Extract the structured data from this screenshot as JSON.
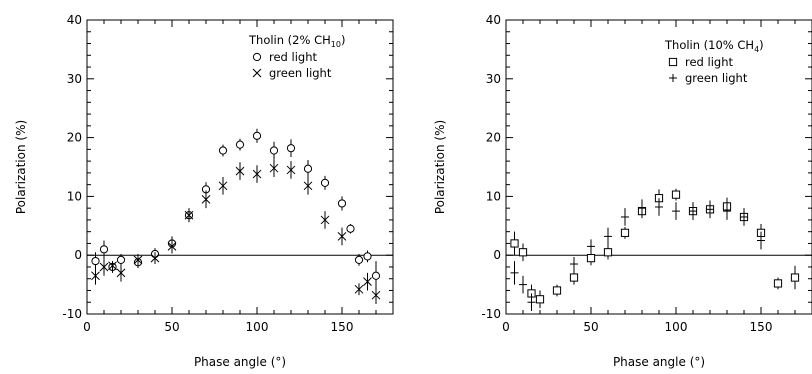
{
  "chart_data": [
    {
      "type": "scatter",
      "title": "",
      "xlabel": "Phase angle (°)",
      "ylabel": "Polarization (%)",
      "xlim": [
        0,
        180
      ],
      "ylim": [
        -10,
        40
      ],
      "xticks": [
        "0",
        "50",
        "100",
        "150"
      ],
      "yticks": [
        "-10",
        "0",
        "10",
        "20",
        "30",
        "40"
      ],
      "grid": false,
      "zero_line": true,
      "legend": {
        "position": "top-right",
        "title_main": "Tholin (2% CH",
        "title_sub": "10",
        "title_end": ")",
        "entries": [
          "red light",
          "green light"
        ]
      },
      "series": [
        {
          "name": "red light",
          "marker": "circle",
          "points": [
            {
              "x": 5,
              "y": -1.0,
              "err": 1.5
            },
            {
              "x": 10,
              "y": 1.0,
              "err": 1.5
            },
            {
              "x": 15,
              "y": -2.0,
              "err": 1.0
            },
            {
              "x": 20,
              "y": -0.8,
              "err": 1.0
            },
            {
              "x": 30,
              "y": -1.2,
              "err": 1.0
            },
            {
              "x": 40,
              "y": 0.2,
              "err": 1.0
            },
            {
              "x": 50,
              "y": 2.0,
              "err": 1.2
            },
            {
              "x": 60,
              "y": 6.8,
              "err": 1.2
            },
            {
              "x": 70,
              "y": 11.2,
              "err": 1.2
            },
            {
              "x": 80,
              "y": 17.8,
              "err": 1.0
            },
            {
              "x": 90,
              "y": 18.8,
              "err": 1.0
            },
            {
              "x": 100,
              "y": 20.3,
              "err": 1.2
            },
            {
              "x": 110,
              "y": 17.8,
              "err": 1.5
            },
            {
              "x": 120,
              "y": 18.2,
              "err": 1.5
            },
            {
              "x": 130,
              "y": 14.7,
              "err": 1.5
            },
            {
              "x": 140,
              "y": 12.3,
              "err": 1.2
            },
            {
              "x": 150,
              "y": 8.8,
              "err": 1.2
            },
            {
              "x": 155,
              "y": 4.5,
              "err": 0.8
            },
            {
              "x": 160,
              "y": -0.8,
              "err": 1.0
            },
            {
              "x": 165,
              "y": -0.2,
              "err": 1.0
            },
            {
              "x": 170,
              "y": -3.5,
              "err": 2.5
            }
          ]
        },
        {
          "name": "green light",
          "marker": "x",
          "points": [
            {
              "x": 5,
              "y": -3.5,
              "err": 1.5
            },
            {
              "x": 10,
              "y": -2.0,
              "err": 1.5
            },
            {
              "x": 15,
              "y": -1.8,
              "err": 0.8
            },
            {
              "x": 20,
              "y": -3.0,
              "err": 1.5
            },
            {
              "x": 30,
              "y": -0.8,
              "err": 1.0
            },
            {
              "x": 40,
              "y": -0.5,
              "err": 1.0
            },
            {
              "x": 50,
              "y": 1.5,
              "err": 1.2
            },
            {
              "x": 60,
              "y": 6.8,
              "err": 1.0
            },
            {
              "x": 70,
              "y": 9.5,
              "err": 1.5
            },
            {
              "x": 80,
              "y": 11.8,
              "err": 1.5
            },
            {
              "x": 90,
              "y": 14.3,
              "err": 1.5
            },
            {
              "x": 100,
              "y": 13.8,
              "err": 1.5
            },
            {
              "x": 110,
              "y": 14.8,
              "err": 1.5
            },
            {
              "x": 120,
              "y": 14.5,
              "err": 1.5
            },
            {
              "x": 130,
              "y": 11.8,
              "err": 1.5
            },
            {
              "x": 140,
              "y": 6.0,
              "err": 1.5
            },
            {
              "x": 150,
              "y": 3.2,
              "err": 1.5
            },
            {
              "x": 160,
              "y": -5.8,
              "err": 1.0
            },
            {
              "x": 165,
              "y": -4.5,
              "err": 1.5
            },
            {
              "x": 170,
              "y": -6.8,
              "err": 1.5
            }
          ]
        }
      ]
    },
    {
      "type": "scatter",
      "title": "",
      "xlabel": "Phase angle (°)",
      "ylabel": "Polarization (%)",
      "xlim": [
        0,
        180
      ],
      "ylim": [
        -10,
        40
      ],
      "xticks": [
        "0",
        "50",
        "100",
        "150"
      ],
      "yticks": [
        "-10",
        "0",
        "10",
        "20",
        "30",
        "40"
      ],
      "grid": false,
      "zero_line": true,
      "legend": {
        "position": "top-right",
        "title_main": "Tholin (10% CH",
        "title_sub": "4",
        "title_end": ")",
        "entries": [
          "red light",
          "green light"
        ]
      },
      "series": [
        {
          "name": "red light",
          "marker": "square",
          "points": [
            {
              "x": 5,
              "y": 2.0,
              "err": 2.0
            },
            {
              "x": 10,
              "y": 0.5,
              "err": 1.5
            },
            {
              "x": 15,
              "y": -6.5,
              "err": 1.5
            },
            {
              "x": 20,
              "y": -7.5,
              "err": 1.5
            },
            {
              "x": 30,
              "y": -6.0,
              "err": 1.0
            },
            {
              "x": 40,
              "y": -3.8,
              "err": 1.2
            },
            {
              "x": 50,
              "y": -0.5,
              "err": 1.2
            },
            {
              "x": 60,
              "y": 0.5,
              "err": 1.2
            },
            {
              "x": 70,
              "y": 3.8,
              "err": 1.0
            },
            {
              "x": 80,
              "y": 7.5,
              "err": 1.2
            },
            {
              "x": 90,
              "y": 9.7,
              "err": 1.5
            },
            {
              "x": 100,
              "y": 10.3,
              "err": 1.0
            },
            {
              "x": 110,
              "y": 7.5,
              "err": 1.5
            },
            {
              "x": 120,
              "y": 7.8,
              "err": 1.2
            },
            {
              "x": 130,
              "y": 8.3,
              "err": 1.5
            },
            {
              "x": 140,
              "y": 6.5,
              "err": 1.2
            },
            {
              "x": 150,
              "y": 3.8,
              "err": 1.5
            },
            {
              "x": 160,
              "y": -4.8,
              "err": 1.0
            },
            {
              "x": 170,
              "y": -3.8,
              "err": 2.0
            }
          ]
        },
        {
          "name": "green light",
          "marker": "plus",
          "points": [
            {
              "x": 5,
              "y": -3.0,
              "err": 2.0
            },
            {
              "x": 10,
              "y": -5.0,
              "err": 1.5
            },
            {
              "x": 15,
              "y": -8.0,
              "err": 1.5
            },
            {
              "x": 40,
              "y": -1.5,
              "err": 1.2
            },
            {
              "x": 50,
              "y": 1.5,
              "err": 1.2
            },
            {
              "x": 60,
              "y": 3.2,
              "err": 1.5
            },
            {
              "x": 70,
              "y": 6.5,
              "err": 1.5
            },
            {
              "x": 80,
              "y": 8.0,
              "err": 1.5
            },
            {
              "x": 90,
              "y": 8.2,
              "err": 1.5
            },
            {
              "x": 100,
              "y": 7.5,
              "err": 1.5
            },
            {
              "x": 110,
              "y": 7.5,
              "err": 1.5
            },
            {
              "x": 120,
              "y": 7.8,
              "err": 1.5
            },
            {
              "x": 130,
              "y": 7.5,
              "err": 1.5
            },
            {
              "x": 140,
              "y": 6.5,
              "err": 1.5
            },
            {
              "x": 150,
              "y": 2.5,
              "err": 1.5
            }
          ]
        }
      ]
    }
  ]
}
